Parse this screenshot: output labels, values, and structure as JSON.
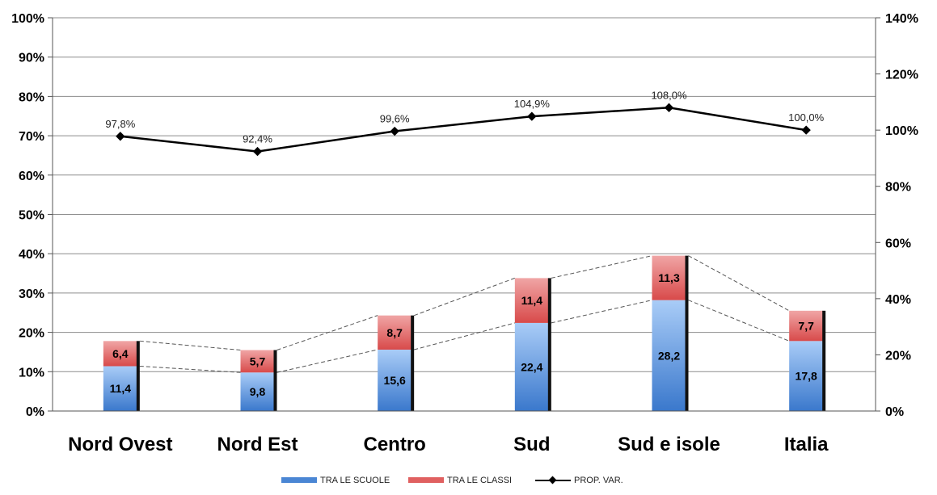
{
  "chart_data": {
    "type": "bar",
    "stacked": true,
    "categories": [
      "Nord Ovest",
      "Nord Est",
      "Centro",
      "Sud",
      "Sud e isole",
      "Italia"
    ],
    "series": [
      {
        "name": "TRA LE SCUOLE",
        "axis": "left",
        "values": [
          11.4,
          9.8,
          15.6,
          22.4,
          28.2,
          17.8
        ],
        "labels": [
          "11,4",
          "9,8",
          "15,6",
          "22,4",
          "28,2",
          "17,8"
        ],
        "color": "#4a86d4"
      },
      {
        "name": "TRA LE CLASSI",
        "axis": "left",
        "values": [
          6.4,
          5.7,
          8.7,
          11.4,
          11.3,
          7.7
        ],
        "labels": [
          "6,4",
          "5,7",
          "8,7",
          "11,4",
          "11,3",
          "7,7"
        ],
        "color": "#e06060"
      },
      {
        "name": "PROP. VAR.",
        "type": "line",
        "axis": "right",
        "values": [
          97.8,
          92.4,
          99.6,
          104.9,
          108.0,
          100.0
        ],
        "labels": [
          "97,8%",
          "92,4%",
          "99,6%",
          "104,9%",
          "108,0%",
          "100,0%"
        ],
        "color": "#000000"
      }
    ],
    "y_left": {
      "ylim": [
        0,
        100
      ],
      "ticks": [
        "0%",
        "10%",
        "20%",
        "30%",
        "40%",
        "50%",
        "60%",
        "70%",
        "80%",
        "90%",
        "100%"
      ]
    },
    "y_right": {
      "ylim": [
        0,
        140
      ],
      "ticks": [
        "0%",
        "20%",
        "40%",
        "60%",
        "80%",
        "100%",
        "120%",
        "140%"
      ]
    },
    "grid": true,
    "legend": "bottom",
    "legend_labels": [
      "TRA LE SCUOLE",
      "TRA LE CLASSI",
      "PROP. VAR."
    ]
  }
}
